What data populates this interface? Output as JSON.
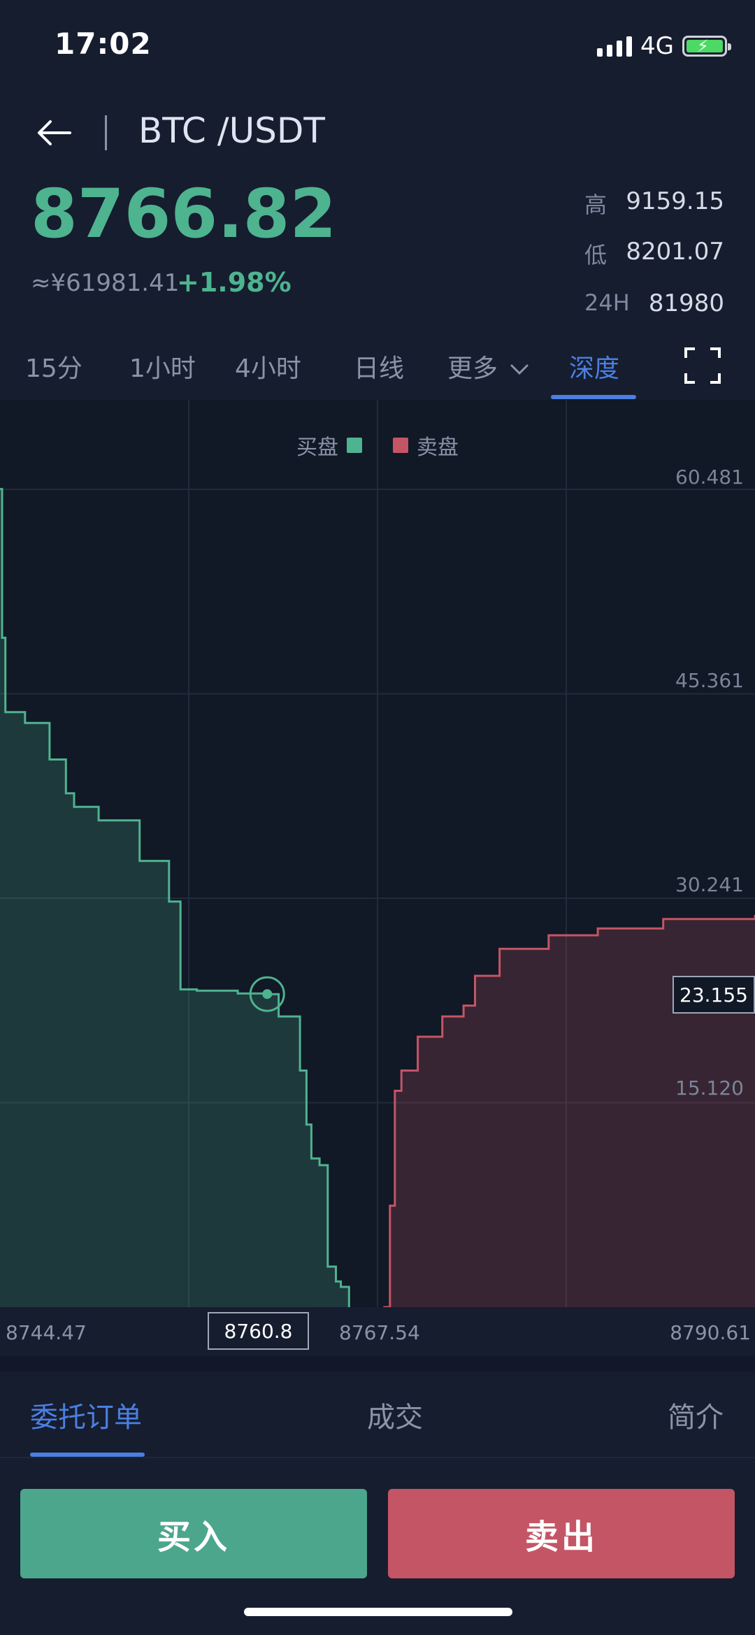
{
  "status_bar": {
    "time": "17:02",
    "network": "4G"
  },
  "header": {
    "pair": "BTC /USDT"
  },
  "ticker": {
    "price": "8766.82",
    "cny": "≈¥61981.41",
    "change": "+1.98%",
    "high_label": "高",
    "high_value": "9159.15",
    "low_label": "低",
    "low_value": "8201.07",
    "vol_label": "24H",
    "vol_value": "81980"
  },
  "tabs": [
    {
      "label": "15分"
    },
    {
      "label": "1小时"
    },
    {
      "label": "4小时"
    },
    {
      "label": "日线"
    },
    {
      "label": "更多"
    },
    {
      "label": "深度"
    }
  ],
  "colors": {
    "bid": "#4eb38f",
    "ask": "#c45565",
    "accent": "#4b7fe1"
  },
  "chart_data": {
    "type": "area",
    "legend": [
      "买盘",
      "卖盘"
    ],
    "legend_placement": "top-center",
    "grid": true,
    "x_tick_labels": [
      "8744.47",
      "8767.54",
      "8790.61"
    ],
    "y_tick_labels": [
      "60.481",
      "45.361",
      "30.241",
      "15.120"
    ],
    "xlim": [
      8744.47,
      8790.61
    ],
    "ylim": [
      0,
      60.481
    ],
    "series": [
      {
        "name": "买盘",
        "x": [
          8744.47,
          8744.6,
          8744.8,
          8746.0,
          8747.5,
          8748.5,
          8749.0,
          8750.5,
          8753.0,
          8754.8,
          8755.5,
          8756.5,
          8759.0,
          8760.8,
          8761.5,
          8762.8,
          8763.2,
          8763.5,
          8764.0,
          8764.5,
          8765.0,
          8765.3,
          8765.8
        ],
        "values": [
          60.5,
          49.5,
          44.0,
          43.2,
          40.5,
          38.0,
          37.0,
          36.0,
          33.0,
          30.0,
          23.5,
          23.4,
          23.2,
          23.15,
          21.5,
          17.5,
          13.5,
          11.0,
          10.5,
          3.0,
          1.9,
          1.5,
          0.0
        ]
      },
      {
        "name": "卖盘",
        "x": [
          8767.9,
          8768.3,
          8768.6,
          8769.0,
          8770.0,
          8771.5,
          8772.8,
          8773.5,
          8775.0,
          8778.0,
          8781.0,
          8785.0,
          8790.61
        ],
        "values": [
          0.0,
          7.5,
          16.0,
          17.5,
          20.0,
          21.5,
          22.3,
          24.5,
          26.5,
          27.5,
          28.0,
          28.7,
          29.0
        ]
      }
    ],
    "selected": {
      "x": 8760.8,
      "y": 23.155
    }
  },
  "sections": [
    {
      "label": "委托订单"
    },
    {
      "label": "成交"
    },
    {
      "label": "简介"
    }
  ],
  "actions": {
    "buy": "买入",
    "sell": "卖出"
  }
}
